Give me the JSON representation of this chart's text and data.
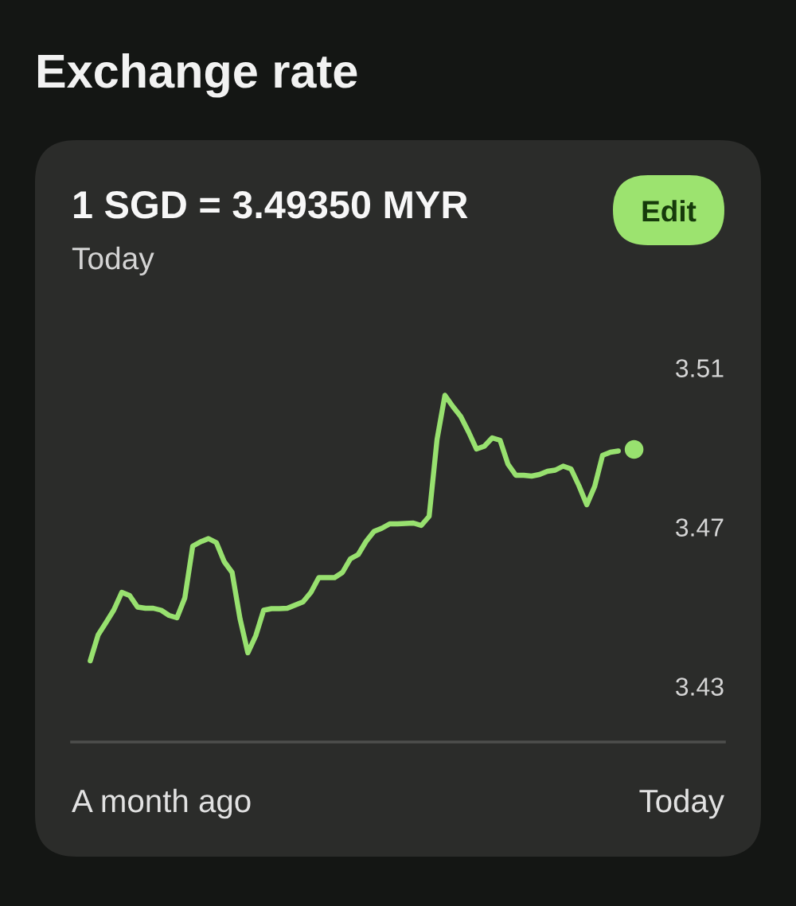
{
  "chart_data": {
    "type": "line",
    "title": "Exchange rate",
    "subtitle": "1 SGD = 3.49350 MYR",
    "annotations": [
      "Today",
      "Edit",
      "A month ago",
      "Today"
    ],
    "categories": [
      null,
      null,
      null,
      null,
      null,
      null,
      null,
      null,
      null,
      null,
      null,
      null,
      null,
      null,
      null,
      null,
      null,
      null,
      null,
      null,
      null,
      null,
      null,
      null,
      null,
      null,
      null,
      null,
      null,
      null,
      null,
      null,
      null,
      null,
      null,
      null,
      null,
      null,
      null,
      null,
      null,
      null,
      null,
      null,
      null,
      null,
      null,
      null,
      null,
      null,
      null,
      null,
      null,
      null,
      null,
      null,
      null,
      null,
      null,
      null,
      null,
      null,
      null,
      null,
      null,
      null,
      null,
      null,
      null,
      null
    ],
    "series": [
      {
        "color": "#98e16f",
        "values": [
          3.4364,
          3.4429,
          3.446,
          3.4492,
          3.4536,
          3.4528,
          3.4499,
          3.4496,
          3.4496,
          3.4491,
          3.4478,
          3.4472,
          3.4522,
          3.4652,
          3.4663,
          3.4671,
          3.4661,
          3.4613,
          3.4586,
          3.447,
          3.4384,
          3.4427,
          3.4491,
          3.4495,
          3.4495,
          3.4496,
          3.4504,
          3.4512,
          3.4536,
          3.4573,
          3.4573,
          3.4573,
          3.4586,
          3.462,
          3.4631,
          3.4664,
          3.4689,
          3.4697,
          3.4708,
          3.4708,
          3.4709,
          3.471,
          3.4704,
          3.4727,
          3.492,
          3.5031,
          3.5003,
          3.4978,
          3.4939,
          3.4896,
          3.4903,
          3.4924,
          3.4918,
          3.4858,
          3.483,
          3.483,
          3.4828,
          3.4832,
          3.484,
          3.4843,
          3.4853,
          3.4846,
          3.4804,
          3.4756,
          3.4802,
          3.488,
          3.4888,
          3.4891,
          null,
          null
        ]
      },
      {
        "type": "scatter",
        "color": "#98e16f",
        "marker": "circle",
        "values": [
          null,
          null,
          null,
          null,
          null,
          null,
          null,
          null,
          null,
          null,
          null,
          null,
          null,
          null,
          null,
          null,
          null,
          null,
          null,
          null,
          null,
          null,
          null,
          null,
          null,
          null,
          null,
          null,
          null,
          null,
          null,
          null,
          null,
          null,
          null,
          null,
          null,
          null,
          null,
          null,
          null,
          null,
          null,
          null,
          null,
          null,
          null,
          null,
          null,
          null,
          null,
          null,
          null,
          null,
          null,
          null,
          null,
          null,
          null,
          null,
          null,
          null,
          null,
          null,
          null,
          null,
          null,
          null,
          null,
          3.4895
        ]
      }
    ],
    "ylim": [
      3.416,
      3.51
    ],
    "yticks": [
      3.43,
      3.47,
      3.51
    ],
    "tick_labels": "y"
  }
}
